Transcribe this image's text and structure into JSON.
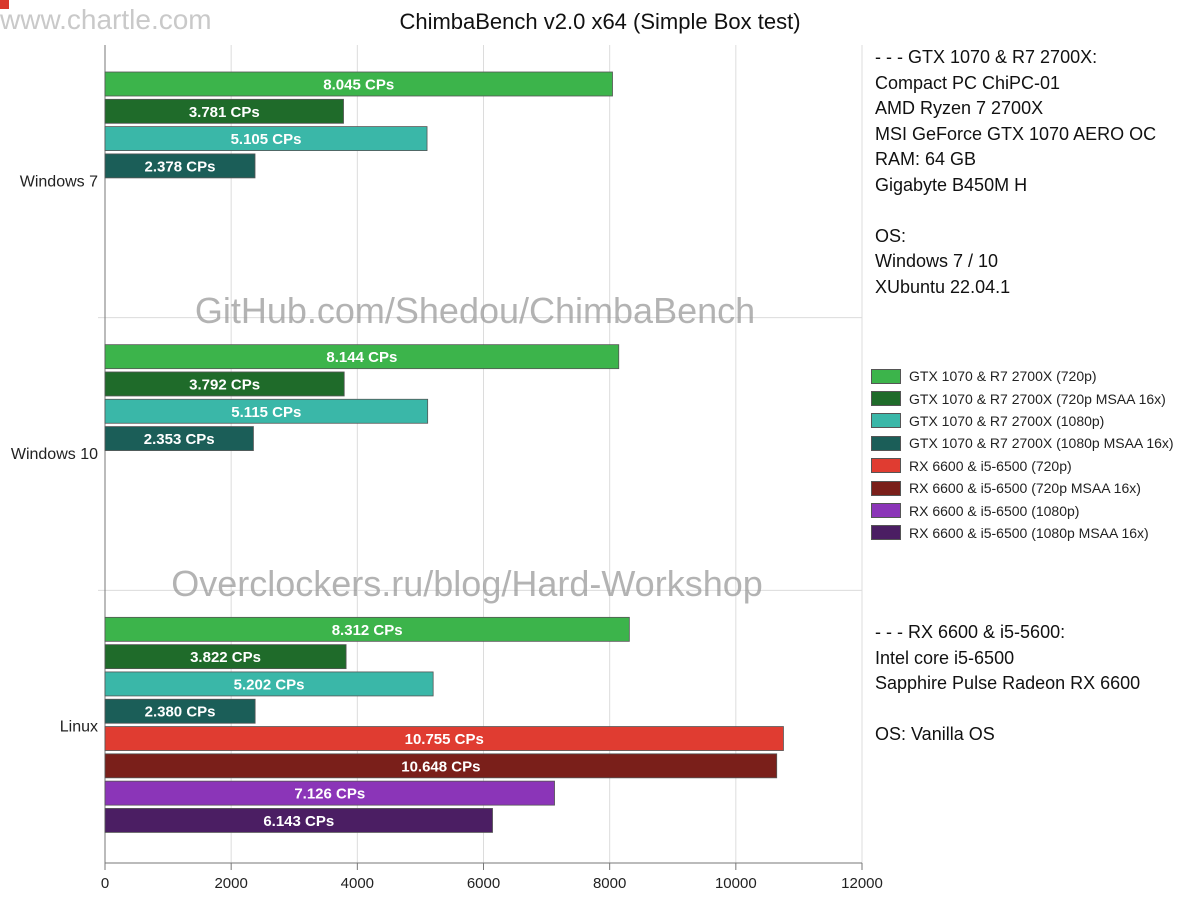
{
  "watermarks": {
    "site": "www.chartle.com",
    "github": "GitHub.com/Shedou/ChimbaBench",
    "blog": "Overclockers.ru/blog/Hard-Workshop"
  },
  "info_top": [
    "- - - GTX 1070 & R7 2700X:",
    "Compact PC ChiPC-01",
    "AMD Ryzen 7 2700X",
    "MSI GeForce GTX 1070 AERO OC",
    "RAM: 64 GB",
    "Gigabyte B450M H",
    "",
    "OS:",
    "Windows 7 / 10",
    "XUbuntu 22.04.1"
  ],
  "info_bottom": [
    "- - - RX 6600 & i5-5600:",
    "Intel core i5-6500",
    "Sapphire Pulse Radeon RX 6600",
    "",
    "OS: Vanilla OS"
  ],
  "chart_data": {
    "type": "bar",
    "orientation": "horizontal",
    "title": "ChimbaBench v2.0 x64 (Simple Box test)",
    "xlabel": "",
    "ylabel": "",
    "xlim": [
      0,
      12000
    ],
    "x_ticks": [
      0,
      2000,
      4000,
      6000,
      8000,
      10000,
      12000
    ],
    "grid": true,
    "legend_position": "right",
    "value_suffix": " CPs",
    "categories": [
      "Windows 7",
      "Windows 10",
      "Linux"
    ],
    "series": [
      {
        "name": "GTX 1070 & R7 2700X (720p)",
        "color": "#3cb44b",
        "values": [
          8045,
          8144,
          8312
        ],
        "labels": [
          "8.045",
          "8.144",
          "8.312"
        ]
      },
      {
        "name": "GTX 1070 & R7 2700X (720p MSAA 16x)",
        "color": "#1f6b2a",
        "values": [
          3781,
          3792,
          3822
        ],
        "labels": [
          "3.781",
          "3.792",
          "3.822"
        ]
      },
      {
        "name": "GTX 1070 & R7 2700X (1080p)",
        "color": "#3ab7a8",
        "values": [
          5105,
          5115,
          5202
        ],
        "labels": [
          "5.105",
          "5.115",
          "5.202"
        ]
      },
      {
        "name": "GTX 1070 & R7 2700X (1080p MSAA 16x)",
        "color": "#1b5e58",
        "values": [
          2378,
          2353,
          2380
        ],
        "labels": [
          "2.378",
          "2.353",
          "2.380"
        ]
      },
      {
        "name": "RX 6600 & i5-6500 (720p)",
        "color": "#e03c31",
        "values": [
          null,
          null,
          10755
        ],
        "labels": [
          "",
          "",
          "10.755"
        ]
      },
      {
        "name": "RX 6600 & i5-6500 (720p MSAA 16x)",
        "color": "#7a1f1a",
        "values": [
          null,
          null,
          10648
        ],
        "labels": [
          "",
          "",
          "10.648"
        ]
      },
      {
        "name": "RX 6600 & i5-6500 (1080p)",
        "color": "#8b35b8",
        "values": [
          null,
          null,
          7126
        ],
        "labels": [
          "",
          "",
          "7.126"
        ]
      },
      {
        "name": "RX 6600 & i5-6500 (1080p MSAA 16x)",
        "color": "#4b1e63",
        "values": [
          null,
          null,
          6143
        ],
        "labels": [
          "",
          "",
          "6.143"
        ]
      }
    ]
  }
}
